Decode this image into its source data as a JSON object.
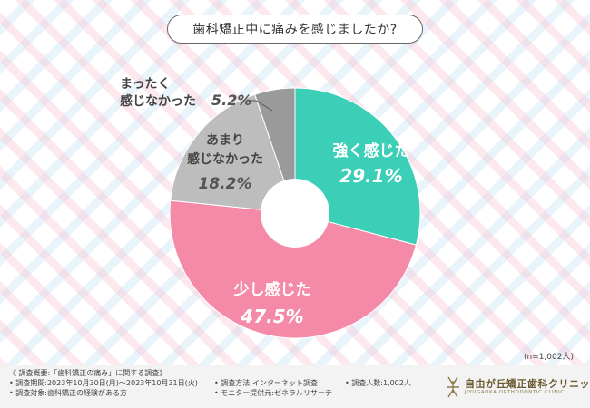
{
  "title": "歯科矯正中に痛みを感じましたか?",
  "chart_data": {
    "type": "pie",
    "title": "歯科矯正中に痛みを感じましたか?",
    "sample_note": "(n=1,002人)",
    "slices": [
      {
        "label": "強く感じた",
        "value": 29.1,
        "display": "29.1%",
        "color": "#3ccfb8"
      },
      {
        "label": "少し感じた",
        "value": 47.5,
        "display": "47.5%",
        "color": "#f48aa8"
      },
      {
        "label": "あまり感じなかった",
        "value": 18.2,
        "display": "18.2%",
        "color": "#bdbdbd"
      },
      {
        "label": "まったく感じなかった",
        "value": 5.2,
        "display": "5.2%",
        "color": "#9a9a9a"
      }
    ]
  },
  "labels": {
    "s1_text": "強く感じた",
    "s2_text": "少し感じた",
    "s3_line1": "あまり",
    "s3_line2": "感じなかった",
    "s4_line1": "まったく",
    "s4_line2": "感じなかった"
  },
  "footer": {
    "overview": "《 調査概要:「歯科矯正の痛み」に関する調査》",
    "period": "• 調査期間:2023年10月30日(月)〜2023年10月31日(火)",
    "method": "• 調査方法:インターネット調査",
    "count": "• 調査人数:1,002人",
    "target": "• 調査対象:歯科矯正の経験がある方",
    "provider": "• モニター提供元:ゼネラルリサーチ",
    "clinic_name": "自由が丘矯正歯科クリニック",
    "clinic_en": "JIYUGAOKA ORTHODONTIC CLINIC"
  }
}
